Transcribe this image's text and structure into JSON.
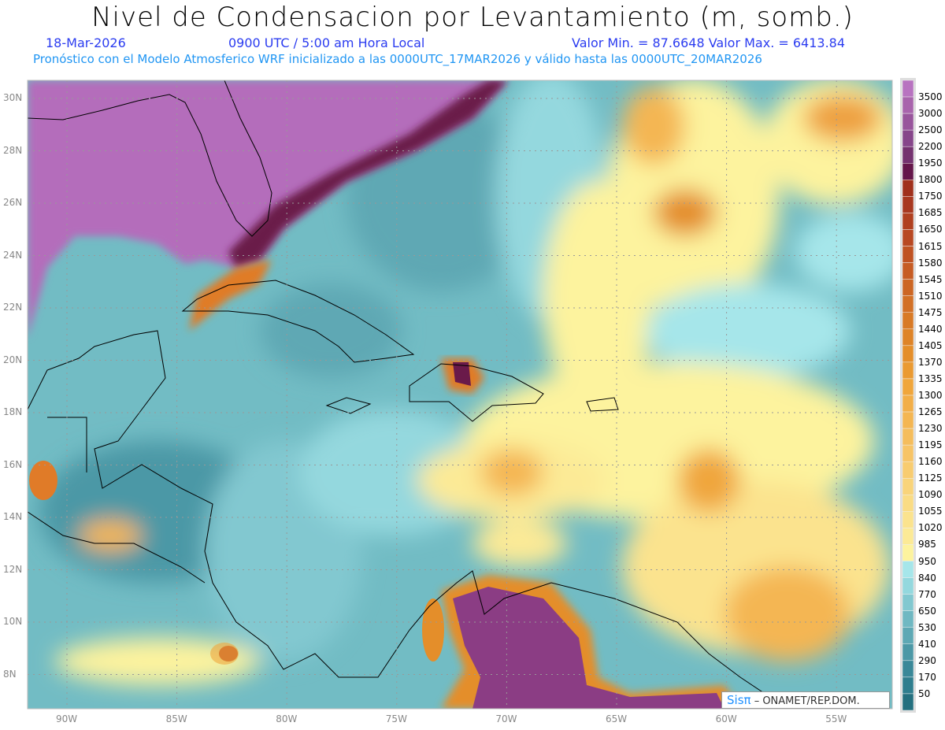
{
  "header": {
    "title": "Nivel de Condensacion por Levantamiento (m, somb.)",
    "date": "18-Mar-2026",
    "time": "0900 UTC / 5:00 am Hora Local",
    "min_max": "Valor Min. = 87.6648   Valor Max. = 6413.84",
    "forecast_info": "Pronóstico con el Modelo Atmosferico WRF inicializado a las 0000UTC_17MAR2026 y válido hasta las  0000UTC_20MAR2026"
  },
  "map": {
    "lat_labels": [
      "30N",
      "28N",
      "26N",
      "24N",
      "22N",
      "20N",
      "18N",
      "16N",
      "14N",
      "12N",
      "10N",
      "8N"
    ],
    "lon_labels": [
      "90W",
      "85W",
      "80W",
      "75W",
      "70W",
      "65W",
      "60W",
      "55W"
    ]
  },
  "colorbar": {
    "labels": [
      "3500",
      "3000",
      "2500",
      "2200",
      "1950",
      "1800",
      "1750",
      "1685",
      "1650",
      "1615",
      "1580",
      "1545",
      "1510",
      "1475",
      "1440",
      "1405",
      "1370",
      "1335",
      "1300",
      "1265",
      "1230",
      "1195",
      "1160",
      "1125",
      "1090",
      "1055",
      "1020",
      "985",
      "950",
      "840",
      "770",
      "650",
      "530",
      "410",
      "290",
      "170",
      "50"
    ],
    "colors": [
      "#b873c0",
      "#a864ac",
      "#98559c",
      "#86468a",
      "#74326f",
      "#64164a",
      "#a0301c",
      "#a83820",
      "#b04020",
      "#b84822",
      "#bf5222",
      "#c65c24",
      "#cc6624",
      "#d27026",
      "#d87a26",
      "#de8428",
      "#e48e2a",
      "#ea9a32",
      "#f0a63c",
      "#f2ae48",
      "#f4b652",
      "#f5bd5c",
      "#f7c466",
      "#f8cc70",
      "#f9d47a",
      "#fadc84",
      "#fbe38e",
      "#fcea96",
      "#fdf39e",
      "#a6e6ea",
      "#94d8de",
      "#82c8d0",
      "#70b8c2",
      "#5ea8b4",
      "#4c98a6",
      "#3a8898",
      "#2f7e8e",
      "#24707f"
    ]
  },
  "credit": {
    "logo": "Sisπ",
    "text": "– ONAMET/REP.DOM."
  }
}
